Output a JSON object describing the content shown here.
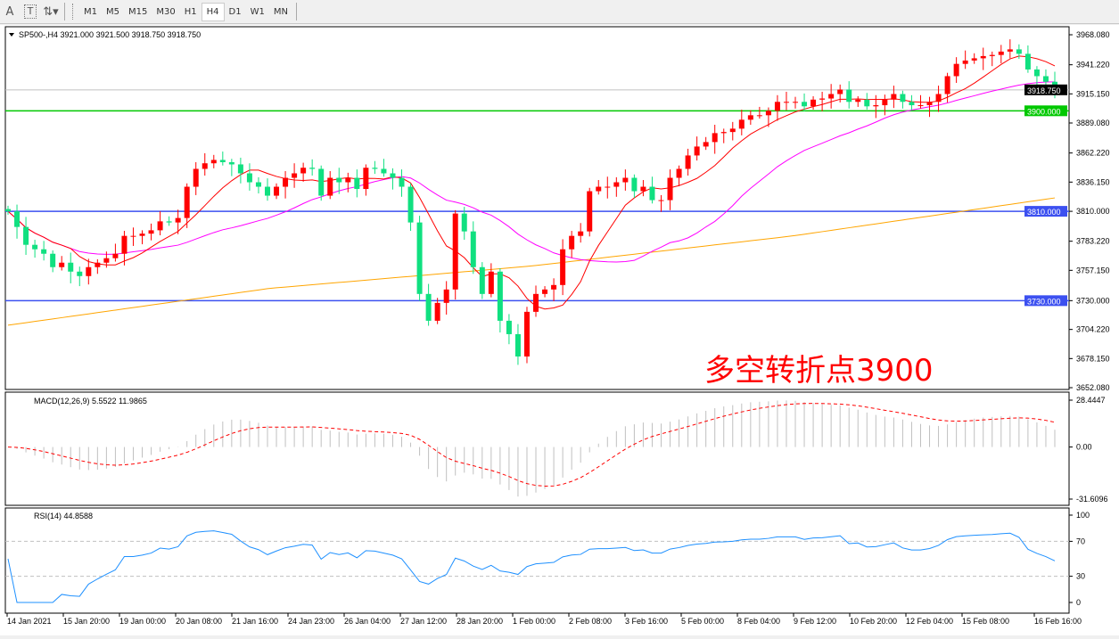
{
  "toolbar": {
    "text_tool": "A",
    "label_tool": "T",
    "timeframes": [
      "M1",
      "M5",
      "M15",
      "M30",
      "H1",
      "H4",
      "D1",
      "W1",
      "MN"
    ],
    "active_timeframe": "H4"
  },
  "header": {
    "symbol_info": "SP500-,H4  3921.000 3921.500 3918.750 3918.750"
  },
  "annotation": "多空转折点3900",
  "colors": {
    "bull": "#ff0000",
    "bear": "#10e080",
    "ma_fast": "#ff0000",
    "ma_mid": "#ff00ff",
    "ma_slow": "#ffa500",
    "hline_green": "#00c800",
    "hline_blue": "#3c50f0",
    "macd_hist": "#c0c0c0",
    "macd_signal": "#ff0000",
    "rsi": "#1e90ff"
  },
  "chart_data": [
    {
      "type": "candlestick",
      "title": "SP500-,H4",
      "ylim": [
        3652.08,
        3968.08
      ],
      "y_ticks": [
        "3968.080",
        "3941.220",
        "3915.150",
        "3889.080",
        "3862.220",
        "3836.150",
        "3810.000",
        "3783.220",
        "3757.150",
        "3730.000",
        "3704.220",
        "3678.150",
        "3652.080"
      ],
      "x_ticks": [
        "14 Jan 2021",
        "15 Jan 20:00",
        "19 Jan 00:00",
        "20 Jan 08:00",
        "21 Jan 16:00",
        "24 Jan 23:00",
        "26 Jan 04:00",
        "27 Jan 12:00",
        "28 Jan 20:00",
        "1 Feb 00:00",
        "2 Feb 08:00",
        "3 Feb 16:00",
        "5 Feb 00:00",
        "8 Feb 04:00",
        "9 Feb 12:00",
        "10 Feb 20:00",
        "12 Feb 04:00",
        "15 Feb 08:00",
        "16 Feb 16:00"
      ],
      "closes": [
        3810,
        3796,
        3780,
        3776,
        3772,
        3760,
        3764,
        3756,
        3752,
        3760,
        3764,
        3768,
        3772,
        3788,
        3788,
        3790,
        3793,
        3801,
        3800,
        3804,
        3832,
        3848,
        3853,
        3856,
        3854,
        3852,
        3844,
        3836,
        3832,
        3824,
        3832,
        3840,
        3844,
        3849,
        3848,
        3824,
        3840,
        3836,
        3840,
        3830,
        3849,
        3848,
        3844,
        3840,
        3832,
        3800,
        3736,
        3712,
        3728,
        3740,
        3808,
        3792,
        3760,
        3736,
        3756,
        3712,
        3700,
        3680,
        3720,
        3736,
        3740,
        3744,
        3776,
        3788,
        3792,
        3828,
        3832,
        3832,
        3836,
        3840,
        3828,
        3832,
        3820,
        3820,
        3840,
        3848,
        3860,
        3868,
        3872,
        3880,
        3881,
        3884,
        3892,
        3896,
        3896,
        3900,
        3908,
        3908,
        3908,
        3904,
        3910,
        3911,
        3915,
        3919,
        3908,
        3910,
        3904,
        3905,
        3910,
        3915,
        3908,
        3905,
        3905,
        3908,
        3915,
        3931,
        3942,
        3945,
        3947,
        3949,
        3950,
        3953,
        3955,
        3951,
        3937,
        3931,
        3926,
        3918.75
      ],
      "last_price": "3918.750",
      "ma_slow_knots": [
        3708,
        3741,
        3761,
        3788,
        3822
      ],
      "horizontal_lines": [
        {
          "price": 3900,
          "label": "3900.000",
          "color": "green"
        },
        {
          "price": 3810,
          "label": "3810.000",
          "color": "blue"
        },
        {
          "price": 3730,
          "label": "3730.000",
          "color": "blue"
        }
      ]
    },
    {
      "type": "bar",
      "title": "MACD(12,26,9) 5.5522 11.9865",
      "ylim": [
        -31.6096,
        28.4447
      ],
      "y_ticks": [
        "28.4447",
        "0.00",
        "-31.6096"
      ]
    },
    {
      "type": "line",
      "title": "RSI(14) 44.8588",
      "ylim": [
        0,
        100
      ],
      "y_ticks": [
        "100",
        "70",
        "30",
        "0"
      ],
      "levels": [
        70,
        30
      ]
    }
  ]
}
